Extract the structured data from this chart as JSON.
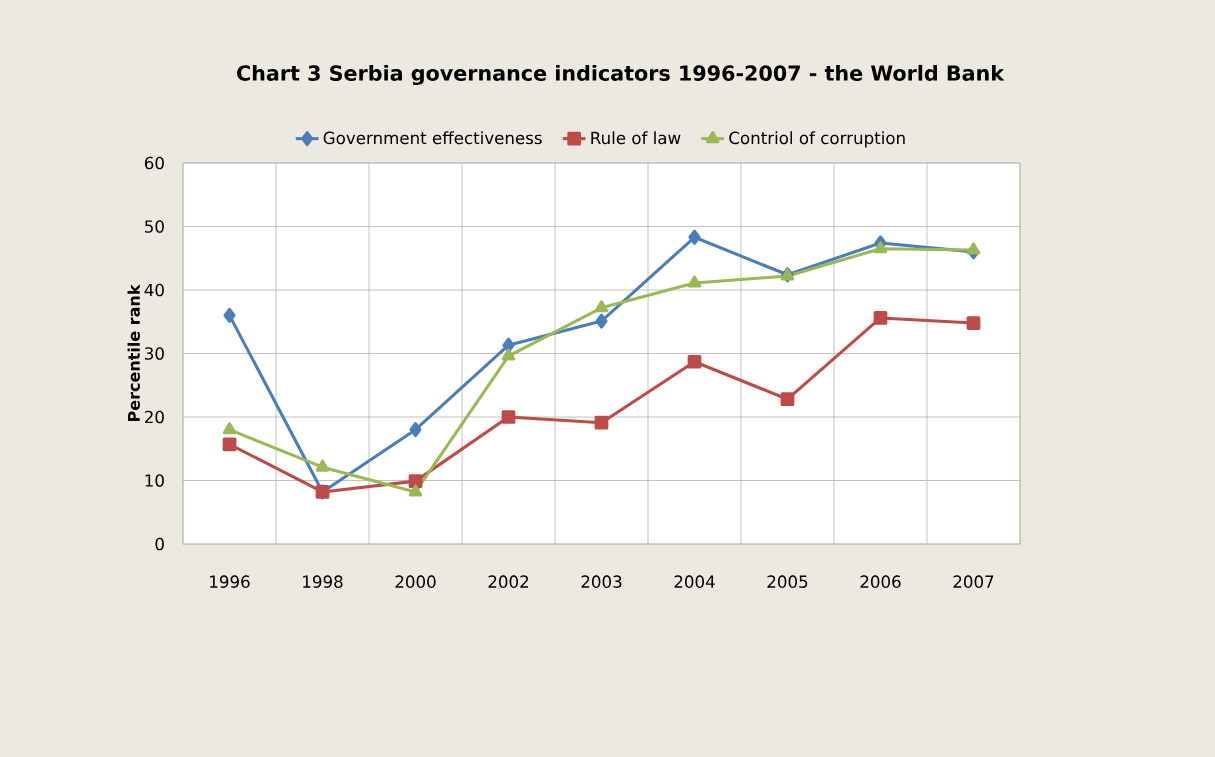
{
  "chart_data": {
    "type": "line",
    "title": "Chart 3 Serbia governance indicators 1996-2007 - the World Bank",
    "ylabel": "Percentile rank",
    "categories": [
      "1996",
      "1998",
      "2000",
      "2002",
      "2003",
      "2004",
      "2005",
      "2006",
      "2007"
    ],
    "series": [
      {
        "name": "Government effectiveness",
        "color": "#4a7ebb",
        "marker": "diamond",
        "values": [
          36,
          8.2,
          18,
          31.3,
          35.1,
          48.3,
          42.4,
          47.4,
          46
        ]
      },
      {
        "name": "Rule of law",
        "color": "#be4b48",
        "marker": "square",
        "values": [
          15.7,
          8.2,
          9.9,
          20,
          19.1,
          28.7,
          22.8,
          35.6,
          34.8
        ]
      },
      {
        "name": "Contriol of corruption",
        "color": "#98b954",
        "marker": "triangle",
        "values": [
          18,
          12.1,
          8.2,
          29.6,
          37.2,
          41.1,
          42.2,
          46.5,
          46.3
        ]
      }
    ],
    "ylim": [
      0,
      60
    ],
    "yticks": [
      0,
      10,
      20,
      30,
      40,
      50,
      60
    ],
    "grid": true,
    "legend": "top",
    "line_style": "solid"
  }
}
